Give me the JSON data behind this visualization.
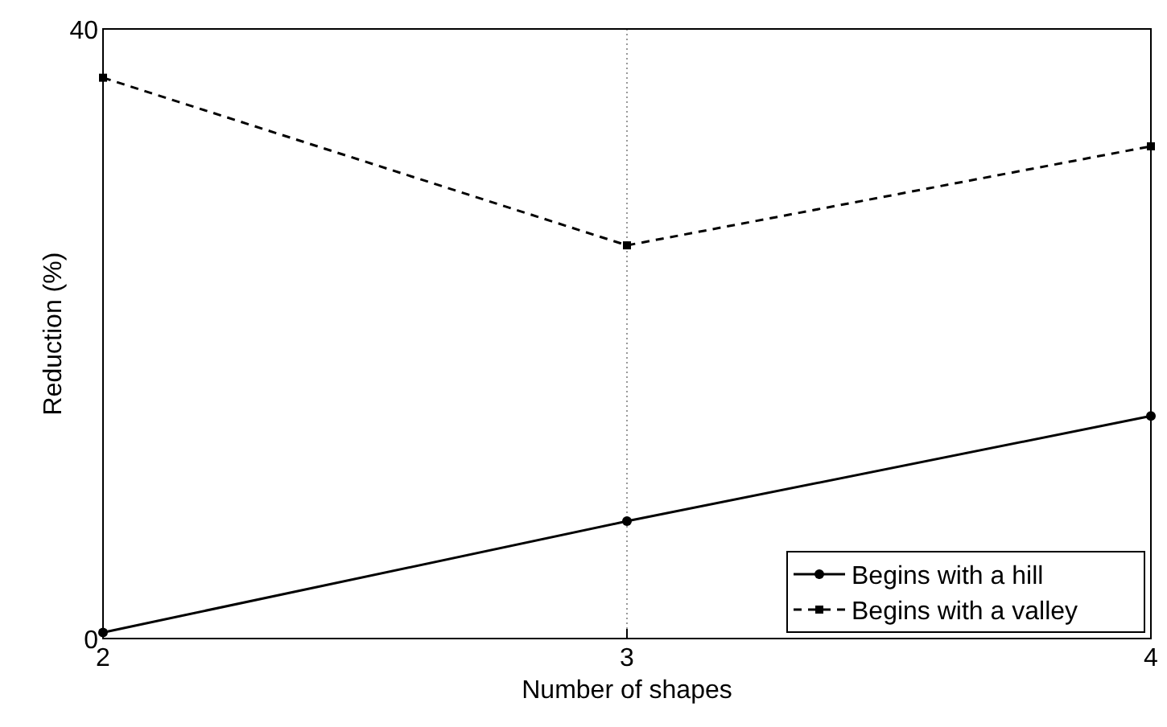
{
  "chart_data": {
    "type": "line",
    "xlabel": "Number of shapes",
    "ylabel": "Reduction (%)",
    "x": [
      2,
      3,
      4
    ],
    "xlim": [
      2,
      4
    ],
    "xticks": [
      2,
      3,
      4
    ],
    "ylim": [
      0,
      40
    ],
    "yticks": [
      0,
      40
    ],
    "grid": "x",
    "legend": "bottom right",
    "series": [
      {
        "name": "Begins with a hill",
        "color": "#000000",
        "values": [
          0.4,
          7.7,
          14.6
        ],
        "marker": "circle",
        "line_style": "solid"
      },
      {
        "name": "Begins with a valley",
        "color": "#000000",
        "values": [
          36.8,
          25.8,
          32.3
        ],
        "marker": "square",
        "line_style": "dashed"
      }
    ]
  }
}
